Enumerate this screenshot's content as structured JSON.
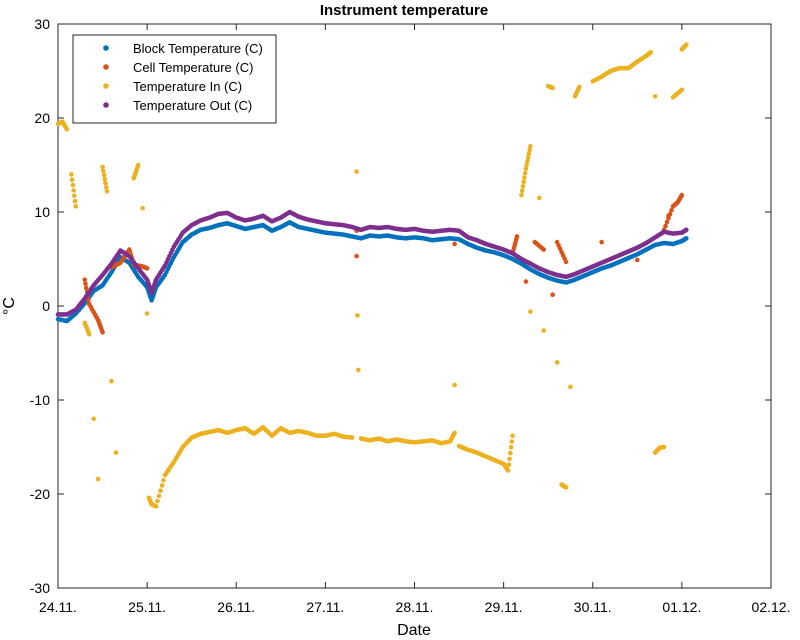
{
  "chart_data": {
    "type": "scatter",
    "title": "Instrument temperature",
    "xlabel": "Date",
    "ylabel": "°C",
    "xlim": [
      0,
      8
    ],
    "ylim": [
      -30,
      30
    ],
    "x_tick_labels": [
      "24.11.",
      "25.11.",
      "26.11.",
      "27.11.",
      "28.11.",
      "29.11.",
      "30.11.",
      "01.12.",
      "02.12."
    ],
    "y_ticks": [
      -30,
      -20,
      -10,
      0,
      10,
      20,
      30
    ],
    "x_unit_note": "x values in days after 24.11.",
    "legend_position": "top-left",
    "grid": false,
    "series": [
      {
        "name": "Block Temperature (C)",
        "color": "#0072BD",
        "points": [
          [
            0,
            -1.4
          ],
          [
            0.1,
            -1.6
          ],
          [
            0.2,
            -0.8
          ],
          [
            0.3,
            0.3
          ],
          [
            0.4,
            1.6
          ],
          [
            0.5,
            2.2
          ],
          [
            0.6,
            3.6
          ],
          [
            0.7,
            5.2
          ],
          [
            0.8,
            4.6
          ],
          [
            0.9,
            3.1
          ],
          [
            1.0,
            2.0
          ],
          [
            1.05,
            0.6
          ],
          [
            1.1,
            2.0
          ],
          [
            1.2,
            3.3
          ],
          [
            1.3,
            5.2
          ],
          [
            1.4,
            6.8
          ],
          [
            1.5,
            7.6
          ],
          [
            1.6,
            8.1
          ],
          [
            1.7,
            8.3
          ],
          [
            1.8,
            8.6
          ],
          [
            1.9,
            8.8
          ],
          [
            2.0,
            8.5
          ],
          [
            2.1,
            8.2
          ],
          [
            2.2,
            8.4
          ],
          [
            2.3,
            8.6
          ],
          [
            2.4,
            8.0
          ],
          [
            2.5,
            8.4
          ],
          [
            2.6,
            8.9
          ],
          [
            2.7,
            8.4
          ],
          [
            2.8,
            8.2
          ],
          [
            2.9,
            8.0
          ],
          [
            3.0,
            7.8
          ],
          [
            3.1,
            7.7
          ],
          [
            3.2,
            7.6
          ],
          [
            3.3,
            7.4
          ],
          [
            3.4,
            7.2
          ],
          [
            3.5,
            7.5
          ],
          [
            3.6,
            7.4
          ],
          [
            3.7,
            7.5
          ],
          [
            3.8,
            7.3
          ],
          [
            3.9,
            7.2
          ],
          [
            4.0,
            7.3
          ],
          [
            4.1,
            7.2
          ],
          [
            4.2,
            7.0
          ],
          [
            4.3,
            7.1
          ],
          [
            4.4,
            7.2
          ],
          [
            4.5,
            7.1
          ],
          [
            4.6,
            6.6
          ],
          [
            4.7,
            6.2
          ],
          [
            4.8,
            5.9
          ],
          [
            4.9,
            5.7
          ],
          [
            5.0,
            5.4
          ],
          [
            5.1,
            5.0
          ],
          [
            5.2,
            4.5
          ],
          [
            5.3,
            3.9
          ],
          [
            5.4,
            3.4
          ],
          [
            5.5,
            3.0
          ],
          [
            5.6,
            2.7
          ],
          [
            5.7,
            2.5
          ],
          [
            5.8,
            2.8
          ],
          [
            5.9,
            3.2
          ],
          [
            6.0,
            3.6
          ],
          [
            6.1,
            4.0
          ],
          [
            6.2,
            4.3
          ],
          [
            6.3,
            4.7
          ],
          [
            6.4,
            5.1
          ],
          [
            6.5,
            5.5
          ],
          [
            6.6,
            6.0
          ],
          [
            6.7,
            6.5
          ],
          [
            6.8,
            6.7
          ],
          [
            6.9,
            6.6
          ],
          [
            7.0,
            6.9
          ],
          [
            7.05,
            7.2
          ]
        ]
      },
      {
        "name": "Cell Temperature (C)",
        "color": "#D95319",
        "points": [
          [
            0.3,
            2.8
          ],
          [
            0.35,
            0.2
          ],
          [
            0.45,
            -1.5
          ],
          [
            0.5,
            -2.8
          ],
          [
            0.6,
            4.1
          ],
          [
            0.7,
            4.6
          ],
          [
            0.8,
            6.0
          ],
          [
            0.85,
            4.4
          ],
          [
            0.95,
            4.2
          ],
          [
            1.0,
            4.0
          ],
          [
            3.35,
            5.3
          ],
          [
            3.35,
            8.0
          ],
          [
            4.45,
            6.6
          ],
          [
            5.1,
            5.6
          ],
          [
            5.15,
            7.4
          ],
          [
            5.25,
            2.6
          ],
          [
            5.35,
            6.8
          ],
          [
            5.45,
            6.0
          ],
          [
            5.55,
            1.2
          ],
          [
            5.6,
            6.8
          ],
          [
            5.7,
            4.7
          ],
          [
            6.1,
            6.8
          ],
          [
            6.5,
            4.9
          ],
          [
            6.8,
            8.1
          ],
          [
            6.9,
            10.6
          ],
          [
            6.95,
            11.0
          ],
          [
            7.0,
            11.8
          ],
          [
            6.85,
            9.6
          ]
        ]
      },
      {
        "name": "Temperature In (C)",
        "color": "#EDB120",
        "points": [
          [
            0,
            19.4
          ],
          [
            0.05,
            19.6
          ],
          [
            0.1,
            18.8
          ],
          [
            0.15,
            14.0
          ],
          [
            0.2,
            10.6
          ],
          [
            0.3,
            -1.8
          ],
          [
            0.35,
            -3.0
          ],
          [
            0.4,
            -12.0
          ],
          [
            0.45,
            -18.4
          ],
          [
            0.5,
            14.8
          ],
          [
            0.55,
            12.2
          ],
          [
            0.6,
            -8.0
          ],
          [
            0.65,
            -15.6
          ],
          [
            0.8,
            5.4
          ],
          [
            0.85,
            13.6
          ],
          [
            0.9,
            15.0
          ],
          [
            0.95,
            10.4
          ],
          [
            1.0,
            -0.8
          ],
          [
            1.02,
            -20.4
          ],
          [
            1.05,
            -21.1
          ],
          [
            1.1,
            -21.3
          ],
          [
            1.2,
            -18.0
          ],
          [
            1.3,
            -16.6
          ],
          [
            1.4,
            -15.0
          ],
          [
            1.5,
            -14.0
          ],
          [
            1.6,
            -13.6
          ],
          [
            1.7,
            -13.4
          ],
          [
            1.8,
            -13.2
          ],
          [
            1.9,
            -13.5
          ],
          [
            2.0,
            -13.2
          ],
          [
            2.1,
            -13.0
          ],
          [
            2.2,
            -13.6
          ],
          [
            2.3,
            -12.9
          ],
          [
            2.4,
            -13.8
          ],
          [
            2.5,
            -13.0
          ],
          [
            2.6,
            -13.5
          ],
          [
            2.7,
            -13.3
          ],
          [
            2.8,
            -13.5
          ],
          [
            2.9,
            -13.8
          ],
          [
            3.0,
            -13.8
          ],
          [
            3.1,
            -13.6
          ],
          [
            3.2,
            -13.9
          ],
          [
            3.3,
            -14.0
          ],
          [
            3.35,
            14.3
          ],
          [
            3.36,
            -1.0
          ],
          [
            3.37,
            -6.8
          ],
          [
            3.4,
            -14.1
          ],
          [
            3.5,
            -14.3
          ],
          [
            3.6,
            -14.1
          ],
          [
            3.7,
            -14.4
          ],
          [
            3.8,
            -14.2
          ],
          [
            3.9,
            -14.4
          ],
          [
            4.0,
            -14.5
          ],
          [
            4.1,
            -14.4
          ],
          [
            4.2,
            -14.3
          ],
          [
            4.3,
            -14.6
          ],
          [
            4.4,
            -14.4
          ],
          [
            4.45,
            -13.5
          ],
          [
            4.45,
            -8.4
          ],
          [
            4.5,
            -14.9
          ],
          [
            4.6,
            -15.3
          ],
          [
            4.7,
            -15.6
          ],
          [
            4.8,
            -16.0
          ],
          [
            4.9,
            -16.4
          ],
          [
            5.0,
            -16.8
          ],
          [
            5.05,
            -17.5
          ],
          [
            5.1,
            -13.8
          ],
          [
            5.2,
            11.8
          ],
          [
            5.25,
            14.6
          ],
          [
            5.3,
            17.0
          ],
          [
            5.3,
            -0.6
          ],
          [
            5.4,
            11.5
          ],
          [
            5.45,
            -2.6
          ],
          [
            5.5,
            23.4
          ],
          [
            5.55,
            23.2
          ],
          [
            5.6,
            -6.0
          ],
          [
            5.65,
            -19.0
          ],
          [
            5.7,
            -19.3
          ],
          [
            5.75,
            -8.6
          ],
          [
            5.8,
            22.3
          ],
          [
            5.85,
            23.3
          ],
          [
            6.0,
            23.9
          ],
          [
            6.1,
            24.4
          ],
          [
            6.2,
            25.0
          ],
          [
            6.3,
            25.3
          ],
          [
            6.4,
            25.3
          ],
          [
            6.5,
            26.0
          ],
          [
            6.6,
            26.6
          ],
          [
            6.65,
            27.0
          ],
          [
            6.7,
            22.3
          ],
          [
            6.7,
            -15.6
          ],
          [
            6.75,
            -15.1
          ],
          [
            6.8,
            -15.0
          ],
          [
            6.9,
            22.2
          ],
          [
            7.0,
            23.0
          ],
          [
            7.0,
            27.3
          ],
          [
            7.05,
            27.8
          ]
        ]
      },
      {
        "name": "Temperature Out (C)",
        "color": "#7E2F8E",
        "points": [
          [
            0,
            -0.9
          ],
          [
            0.1,
            -0.9
          ],
          [
            0.2,
            -0.4
          ],
          [
            0.3,
            0.8
          ],
          [
            0.4,
            2.2
          ],
          [
            0.5,
            3.3
          ],
          [
            0.6,
            4.5
          ],
          [
            0.7,
            5.9
          ],
          [
            0.8,
            5.3
          ],
          [
            0.9,
            4.0
          ],
          [
            1.0,
            2.8
          ],
          [
            1.05,
            1.4
          ],
          [
            1.1,
            2.8
          ],
          [
            1.2,
            4.3
          ],
          [
            1.3,
            6.3
          ],
          [
            1.4,
            7.8
          ],
          [
            1.5,
            8.6
          ],
          [
            1.6,
            9.1
          ],
          [
            1.7,
            9.4
          ],
          [
            1.8,
            9.8
          ],
          [
            1.9,
            9.9
          ],
          [
            2.0,
            9.4
          ],
          [
            2.1,
            9.1
          ],
          [
            2.2,
            9.3
          ],
          [
            2.3,
            9.6
          ],
          [
            2.4,
            9.0
          ],
          [
            2.5,
            9.4
          ],
          [
            2.6,
            10.0
          ],
          [
            2.7,
            9.5
          ],
          [
            2.8,
            9.2
          ],
          [
            2.9,
            9.0
          ],
          [
            3.0,
            8.8
          ],
          [
            3.1,
            8.7
          ],
          [
            3.2,
            8.6
          ],
          [
            3.3,
            8.4
          ],
          [
            3.4,
            8.1
          ],
          [
            3.5,
            8.4
          ],
          [
            3.6,
            8.3
          ],
          [
            3.7,
            8.4
          ],
          [
            3.8,
            8.2
          ],
          [
            3.9,
            8.1
          ],
          [
            4.0,
            8.2
          ],
          [
            4.1,
            8.0
          ],
          [
            4.2,
            7.9
          ],
          [
            4.3,
            8.0
          ],
          [
            4.4,
            8.1
          ],
          [
            4.5,
            8.0
          ],
          [
            4.6,
            7.3
          ],
          [
            4.7,
            7.0
          ],
          [
            4.8,
            6.6
          ],
          [
            4.9,
            6.3
          ],
          [
            5.0,
            6.0
          ],
          [
            5.1,
            5.6
          ],
          [
            5.2,
            5.0
          ],
          [
            5.3,
            4.5
          ],
          [
            5.4,
            4.0
          ],
          [
            5.5,
            3.6
          ],
          [
            5.6,
            3.3
          ],
          [
            5.7,
            3.1
          ],
          [
            5.8,
            3.4
          ],
          [
            5.9,
            3.8
          ],
          [
            6.0,
            4.2
          ],
          [
            6.1,
            4.6
          ],
          [
            6.2,
            5.0
          ],
          [
            6.3,
            5.4
          ],
          [
            6.4,
            5.8
          ],
          [
            6.5,
            6.2
          ],
          [
            6.6,
            6.7
          ],
          [
            6.7,
            7.3
          ],
          [
            6.8,
            7.9
          ],
          [
            6.9,
            7.7
          ],
          [
            7.0,
            7.8
          ],
          [
            7.05,
            8.1
          ]
        ]
      }
    ]
  }
}
